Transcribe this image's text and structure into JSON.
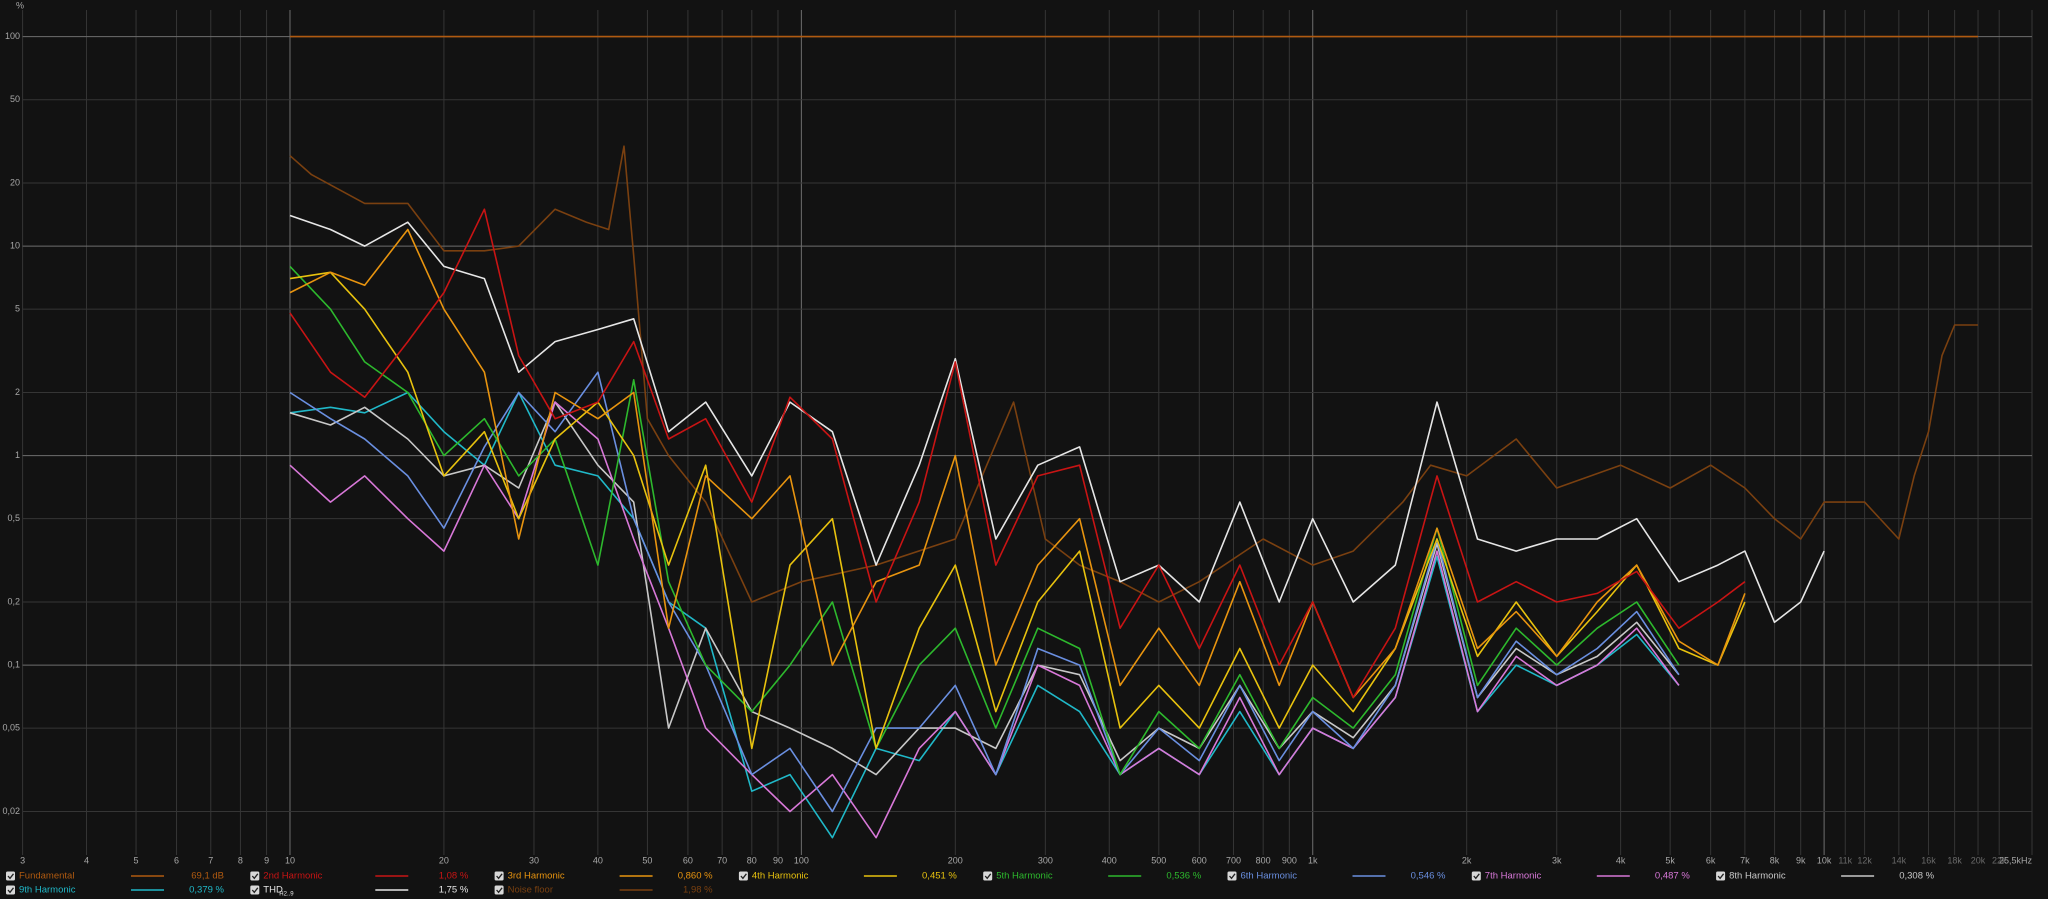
{
  "chart_data": {
    "type": "line",
    "y_label": "%",
    "log_x": true,
    "log_y": true,
    "grid": true,
    "xlim": [
      3,
      25500
    ],
    "ylim": [
      0.0124,
      134
    ],
    "xticks": [
      3,
      4,
      5,
      6,
      7,
      8,
      9,
      10,
      20,
      30,
      40,
      50,
      60,
      70,
      80,
      90,
      100,
      200,
      300,
      400,
      500,
      600,
      700,
      800,
      900,
      {
        "value": 1000,
        "label": "1k"
      },
      {
        "value": 2000,
        "label": "2k"
      },
      {
        "value": 3000,
        "label": "3k"
      },
      {
        "value": 4000,
        "label": "4k"
      },
      {
        "value": 5000,
        "label": "5k"
      },
      {
        "value": 6000,
        "label": "6k"
      },
      {
        "value": 7000,
        "label": "7k"
      },
      {
        "value": 8000,
        "label": "8k"
      },
      {
        "value": 9000,
        "label": "9k"
      },
      {
        "value": 10000,
        "label": "10k"
      },
      {
        "value": 11000,
        "label": "11k"
      },
      {
        "value": 12000,
        "label": "12k"
      },
      {
        "value": 14000,
        "label": "14k"
      },
      {
        "value": 16000,
        "label": "16k"
      },
      {
        "value": 18000,
        "label": "18k"
      },
      {
        "value": 20000,
        "label": "20k"
      },
      {
        "value": 22000,
        "label": "22k"
      },
      {
        "value": 25500,
        "label": "25,5kHz"
      }
    ],
    "yticks": [
      100,
      50,
      20,
      10,
      5,
      2,
      1,
      {
        "value": 0.5,
        "label": "0,5"
      },
      {
        "value": 0.2,
        "label": "0,2"
      },
      {
        "value": 0.1,
        "label": "0,1"
      },
      {
        "value": 0.05,
        "label": "0,05"
      },
      {
        "value": 0.02,
        "label": "0,02"
      }
    ],
    "series": [
      {
        "name": "Fundamental",
        "color": "#b05a10",
        "legend_value": "69,1 dB",
        "x": [
          10,
          20000
        ],
        "values": [
          100,
          100
        ]
      },
      {
        "name": "2nd Harmonic",
        "color": "#c81414",
        "legend_value": "1,08 %",
        "x": [
          10,
          12,
          14,
          17,
          20,
          24,
          28,
          33,
          40,
          47,
          55,
          65,
          80,
          95,
          115,
          140,
          170,
          200,
          240,
          290,
          350,
          420,
          500,
          600,
          720,
          860,
          1000,
          1200,
          1450,
          1750,
          2100,
          2500,
          3000,
          3600,
          4300,
          5200,
          6200,
          7000
        ],
        "values": [
          4.8,
          2.5,
          1.9,
          3.5,
          6,
          15,
          3,
          1.5,
          1.8,
          3.5,
          1.2,
          1.5,
          0.6,
          1.9,
          1.2,
          0.2,
          0.6,
          2.8,
          0.3,
          0.8,
          0.9,
          0.15,
          0.3,
          0.12,
          0.3,
          0.1,
          0.2,
          0.07,
          0.15,
          0.8,
          0.2,
          0.25,
          0.2,
          0.22,
          0.28,
          0.15,
          0.2,
          0.25
        ]
      },
      {
        "name": "3rd Harmonic",
        "color": "#e8940f",
        "legend_value": "0,860 %",
        "x": [
          10,
          12,
          14,
          17,
          20,
          24,
          28,
          33,
          40,
          47,
          55,
          65,
          80,
          95,
          115,
          140,
          170,
          200,
          240,
          290,
          350,
          420,
          500,
          600,
          720,
          860,
          1000,
          1200,
          1450,
          1750,
          2100,
          2500,
          3000,
          3600,
          4300,
          5200,
          6200,
          7000
        ],
        "values": [
          6,
          7.5,
          6.5,
          12,
          5,
          2.5,
          0.4,
          2,
          1.5,
          2,
          0.15,
          0.8,
          0.5,
          0.8,
          0.1,
          0.25,
          0.3,
          1,
          0.1,
          0.3,
          0.5,
          0.08,
          0.15,
          0.08,
          0.25,
          0.08,
          0.2,
          0.07,
          0.12,
          0.45,
          0.12,
          0.18,
          0.11,
          0.2,
          0.3,
          0.13,
          0.1,
          0.22
        ]
      },
      {
        "name": "4th Harmonic",
        "color": "#e8c20e",
        "legend_value": "0,451 %",
        "x": [
          10,
          12,
          14,
          17,
          20,
          24,
          28,
          33,
          40,
          47,
          55,
          65,
          80,
          95,
          115,
          140,
          170,
          200,
          240,
          290,
          350,
          420,
          500,
          600,
          720,
          860,
          1000,
          1200,
          1450,
          1750,
          2100,
          2500,
          3000,
          3600,
          4300,
          5200,
          6200,
          7000
        ],
        "values": [
          7,
          7.5,
          5,
          2.5,
          0.8,
          1.3,
          0.5,
          1.2,
          1.8,
          1,
          0.3,
          0.9,
          0.04,
          0.3,
          0.5,
          0.04,
          0.15,
          0.3,
          0.06,
          0.2,
          0.35,
          0.05,
          0.08,
          0.05,
          0.12,
          0.05,
          0.1,
          0.06,
          0.12,
          0.4,
          0.11,
          0.2,
          0.11,
          0.18,
          0.3,
          0.12,
          0.1,
          0.2
        ]
      },
      {
        "name": "5th Harmonic",
        "color": "#2db82d",
        "legend_value": "0,536 %",
        "x": [
          10,
          12,
          14,
          17,
          20,
          24,
          28,
          33,
          40,
          47,
          55,
          65,
          80,
          95,
          115,
          140,
          170,
          200,
          240,
          290,
          350,
          420,
          500,
          600,
          720,
          860,
          1000,
          1200,
          1450,
          1750,
          2100,
          2500,
          3000,
          3600,
          4300,
          5200
        ],
        "values": [
          8,
          5,
          2.8,
          2,
          1,
          1.5,
          0.8,
          1.2,
          0.3,
          2.3,
          0.25,
          0.1,
          0.06,
          0.1,
          0.2,
          0.04,
          0.1,
          0.15,
          0.05,
          0.15,
          0.12,
          0.03,
          0.06,
          0.04,
          0.09,
          0.04,
          0.07,
          0.05,
          0.09,
          0.45,
          0.08,
          0.15,
          0.1,
          0.15,
          0.2,
          0.1
        ]
      },
      {
        "name": "6th Harmonic",
        "color": "#6a8fe0",
        "legend_value": "0,546 %",
        "x": [
          10,
          12,
          14,
          17,
          20,
          24,
          28,
          33,
          40,
          47,
          55,
          65,
          80,
          95,
          115,
          140,
          170,
          200,
          240,
          290,
          350,
          420,
          500,
          600,
          720,
          860,
          1000,
          1200,
          1450,
          1750,
          2100,
          2500,
          3000,
          3600,
          4300,
          5200
        ],
        "values": [
          2,
          1.5,
          1.2,
          0.8,
          0.45,
          1.1,
          2,
          1.3,
          2.5,
          0.5,
          0.2,
          0.1,
          0.03,
          0.04,
          0.02,
          0.05,
          0.05,
          0.08,
          0.03,
          0.12,
          0.1,
          0.03,
          0.05,
          0.035,
          0.08,
          0.035,
          0.06,
          0.04,
          0.08,
          0.4,
          0.07,
          0.13,
          0.09,
          0.12,
          0.18,
          0.09
        ]
      },
      {
        "name": "7th Harmonic",
        "color": "#d878d8",
        "legend_value": "0,487 %",
        "x": [
          10,
          12,
          14,
          17,
          20,
          24,
          28,
          33,
          40,
          47,
          55,
          65,
          80,
          95,
          115,
          140,
          170,
          200,
          240,
          290,
          350,
          420,
          500,
          600,
          720,
          860,
          1000,
          1200,
          1450,
          1750,
          2100,
          2500,
          3000,
          3600,
          4300,
          5200
        ],
        "values": [
          0.9,
          0.6,
          0.8,
          0.5,
          0.35,
          0.9,
          0.5,
          1.8,
          1.2,
          0.4,
          0.15,
          0.05,
          0.03,
          0.02,
          0.03,
          0.015,
          0.04,
          0.06,
          0.03,
          0.1,
          0.08,
          0.03,
          0.04,
          0.03,
          0.07,
          0.03,
          0.05,
          0.04,
          0.07,
          0.35,
          0.06,
          0.11,
          0.08,
          0.1,
          0.15,
          0.08
        ]
      },
      {
        "name": "8th Harmonic",
        "color": "#c8c8c8",
        "legend_value": "0,308 %",
        "x": [
          10,
          12,
          14,
          17,
          20,
          24,
          28,
          33,
          40,
          47,
          55,
          65,
          80,
          95,
          115,
          140,
          170,
          200,
          240,
          290,
          350,
          420,
          500,
          600,
          720,
          860,
          1000,
          1200,
          1450,
          1750,
          2100,
          2500,
          3000,
          3600,
          4300,
          5200
        ],
        "values": [
          1.6,
          1.4,
          1.7,
          1.2,
          0.8,
          0.9,
          0.7,
          1.8,
          0.9,
          0.6,
          0.05,
          0.15,
          0.06,
          0.05,
          0.04,
          0.03,
          0.05,
          0.05,
          0.04,
          0.1,
          0.09,
          0.035,
          0.05,
          0.04,
          0.08,
          0.04,
          0.06,
          0.045,
          0.08,
          0.38,
          0.07,
          0.12,
          0.09,
          0.11,
          0.16,
          0.09
        ]
      },
      {
        "name": "9th Harmonic",
        "color": "#20b8c8",
        "legend_value": "0,379 %",
        "x": [
          10,
          12,
          14,
          17,
          20,
          24,
          28,
          33,
          40,
          47,
          55,
          65,
          80,
          95,
          115,
          140,
          170,
          200,
          240,
          290,
          350,
          420,
          500,
          600,
          720,
          860,
          1000,
          1200,
          1450,
          1750,
          2100,
          2500,
          3000,
          3600,
          4300,
          5200
        ],
        "values": [
          1.6,
          1.7,
          1.6,
          2,
          1.3,
          0.9,
          2,
          0.9,
          0.8,
          0.5,
          0.2,
          0.15,
          0.025,
          0.03,
          0.015,
          0.04,
          0.035,
          0.06,
          0.03,
          0.08,
          0.06,
          0.03,
          0.04,
          0.03,
          0.06,
          0.03,
          0.05,
          0.04,
          0.07,
          0.33,
          0.06,
          0.1,
          0.08,
          0.1,
          0.14,
          0.08
        ]
      },
      {
        "name": "THD",
        "name_sub": "H2..9",
        "color": "#e6e6e6",
        "legend_value": "1,75 %",
        "x": [
          10,
          12,
          14,
          17,
          20,
          24,
          28,
          33,
          40,
          47,
          55,
          65,
          80,
          95,
          115,
          140,
          170,
          200,
          240,
          290,
          350,
          420,
          500,
          600,
          720,
          860,
          1000,
          1200,
          1450,
          1750,
          2100,
          2500,
          3000,
          3600,
          4300,
          5200,
          6200,
          7000,
          8000,
          9000,
          10000
        ],
        "values": [
          14,
          12,
          10,
          13,
          8,
          7,
          2.5,
          3.5,
          4,
          4.5,
          1.3,
          1.8,
          0.8,
          1.8,
          1.3,
          0.3,
          0.9,
          2.9,
          0.4,
          0.9,
          1.1,
          0.25,
          0.3,
          0.2,
          0.6,
          0.2,
          0.5,
          0.2,
          0.3,
          1.8,
          0.4,
          0.35,
          0.4,
          0.4,
          0.5,
          0.25,
          0.3,
          0.35,
          0.16,
          0.2,
          0.35
        ]
      },
      {
        "name": "Noise floor",
        "color": "#7a4010",
        "legend_value": "1,98 %",
        "x": [
          10,
          11,
          14,
          17,
          20,
          24,
          28,
          33,
          38,
          42,
          45,
          47,
          50,
          55,
          65,
          80,
          100,
          140,
          200,
          260,
          300,
          350,
          420,
          500,
          600,
          800,
          1000,
          1200,
          1500,
          1700,
          2000,
          2500,
          3000,
          4000,
          5000,
          6000,
          7000,
          8000,
          9000,
          10000,
          12000,
          14000,
          15000,
          16000,
          17000,
          18000,
          20000
        ],
        "values": [
          27,
          22,
          16,
          16,
          9.5,
          9.5,
          10,
          15,
          13,
          12,
          30,
          9,
          1.5,
          1,
          0.6,
          0.2,
          0.25,
          0.3,
          0.4,
          1.8,
          0.4,
          0.3,
          0.25,
          0.2,
          0.25,
          0.4,
          0.3,
          0.35,
          0.6,
          0.9,
          0.8,
          1.2,
          0.7,
          0.9,
          0.7,
          0.9,
          0.7,
          0.5,
          0.4,
          0.6,
          0.6,
          0.4,
          0.8,
          1.3,
          3,
          4.2,
          4.2
        ]
      }
    ]
  }
}
